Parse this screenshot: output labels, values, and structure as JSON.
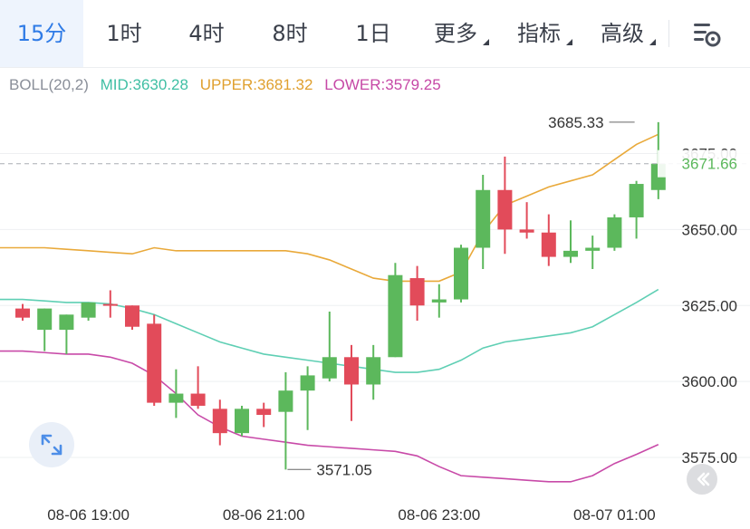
{
  "toolbar": {
    "tabs": [
      {
        "label": "15分",
        "active": true,
        "dropdown": false
      },
      {
        "label": "1时",
        "active": false,
        "dropdown": false
      },
      {
        "label": "4时",
        "active": false,
        "dropdown": false
      },
      {
        "label": "8时",
        "active": false,
        "dropdown": false
      },
      {
        "label": "1日",
        "active": false,
        "dropdown": false
      },
      {
        "label": "更多",
        "active": false,
        "dropdown": true
      },
      {
        "label": "指标",
        "active": false,
        "dropdown": true
      },
      {
        "label": "高级",
        "active": false,
        "dropdown": true
      }
    ],
    "settings_icon": "chart-settings-icon"
  },
  "indicator": {
    "name": "BOLL(20,2)",
    "mid_label": "MID:3630.28",
    "upper_label": "UPPER:3681.32",
    "lower_label": "LOWER:3579.25"
  },
  "colors": {
    "up": "#5cb85c",
    "down": "#e24b5a",
    "mid": "#5fcfb4",
    "upper": "#e9a93a",
    "lower": "#c84aa8",
    "axis_text": "#333333",
    "grid": "#eef0f2",
    "accent": "#2f7be6"
  },
  "chart_data": {
    "type": "candlestick",
    "y_range": [
      3565,
      3695
    ],
    "y_ticks": [
      3575,
      3600,
      3625,
      3650,
      3675
    ],
    "y_tick_labels": [
      "3575.00",
      "3600.00",
      "3625.00",
      "3650.00",
      "3675.00"
    ],
    "x_tick_labels": [
      "08-06 19:00",
      "08-06 21:00",
      "08-06 23:00",
      "08-07 01:00"
    ],
    "x_tick_candle_index": [
      3,
      11,
      19,
      27
    ],
    "current_price_label": "3671.66",
    "current_price": 3671.66,
    "annotations": [
      {
        "label": "3685.33",
        "value": 3685.33,
        "candle_index": 28
      },
      {
        "label": "3571.05",
        "value": 3571.05,
        "candle_index": 12
      }
    ],
    "candles": [
      {
        "o": 3624,
        "h": 3625.5,
        "l": 3620,
        "c": 3621
      },
      {
        "o": 3617,
        "h": 3624,
        "l": 3610,
        "c": 3624
      },
      {
        "o": 3617,
        "h": 3622,
        "l": 3609,
        "c": 3622
      },
      {
        "o": 3621,
        "h": 3626,
        "l": 3620,
        "c": 3626
      },
      {
        "o": 3625.5,
        "h": 3630,
        "l": 3621,
        "c": 3625
      },
      {
        "o": 3625,
        "h": 3625,
        "l": 3617,
        "c": 3618
      },
      {
        "o": 3619,
        "h": 3622,
        "l": 3592,
        "c": 3593
      },
      {
        "o": 3593,
        "h": 3604,
        "l": 3588,
        "c": 3596
      },
      {
        "o": 3596,
        "h": 3605,
        "l": 3591,
        "c": 3592
      },
      {
        "o": 3591,
        "h": 3594,
        "l": 3579,
        "c": 3583
      },
      {
        "o": 3583,
        "h": 3592,
        "l": 3582,
        "c": 3591
      },
      {
        "o": 3591,
        "h": 3593,
        "l": 3585,
        "c": 3589
      },
      {
        "o": 3590,
        "h": 3603,
        "l": 3571,
        "c": 3597
      },
      {
        "o": 3597,
        "h": 3605,
        "l": 3584,
        "c": 3602
      },
      {
        "o": 3601,
        "h": 3623,
        "l": 3600,
        "c": 3608
      },
      {
        "o": 3608,
        "h": 3612,
        "l": 3587,
        "c": 3599
      },
      {
        "o": 3599,
        "h": 3612,
        "l": 3594,
        "c": 3608
      },
      {
        "o": 3608,
        "h": 3639,
        "l": 3608,
        "c": 3635
      },
      {
        "o": 3634,
        "h": 3638,
        "l": 3620,
        "c": 3625
      },
      {
        "o": 3626,
        "h": 3632,
        "l": 3621,
        "c": 3627
      },
      {
        "o": 3627,
        "h": 3645,
        "l": 3626,
        "c": 3644
      },
      {
        "o": 3644,
        "h": 3668,
        "l": 3637,
        "c": 3663
      },
      {
        "o": 3663,
        "h": 3674,
        "l": 3642,
        "c": 3650
      },
      {
        "o": 3650,
        "h": 3659,
        "l": 3647,
        "c": 3649
      },
      {
        "o": 3649,
        "h": 3655,
        "l": 3638,
        "c": 3641
      },
      {
        "o": 3641,
        "h": 3653,
        "l": 3639,
        "c": 3643
      },
      {
        "o": 3643,
        "h": 3648,
        "l": 3637,
        "c": 3644
      },
      {
        "o": 3644,
        "h": 3655,
        "l": 3643,
        "c": 3654
      },
      {
        "o": 3654,
        "h": 3666,
        "l": 3647,
        "c": 3665
      },
      {
        "o": 3663,
        "h": 3685.33,
        "l": 3660,
        "c": 3671.66
      }
    ],
    "bands": {
      "upper": [
        3644,
        3644,
        3643.5,
        3643,
        3642.5,
        3642,
        3644,
        3643,
        3643,
        3643,
        3643,
        3643,
        3643,
        3642,
        3640,
        3637,
        3634,
        3633,
        3633,
        3633,
        3636,
        3649,
        3658,
        3661,
        3664,
        3666,
        3668,
        3673,
        3678,
        3681.32
      ],
      "mid": [
        3627,
        3626.5,
        3626,
        3626,
        3625.5,
        3624,
        3622,
        3619,
        3616,
        3613,
        3611,
        3609,
        3608,
        3607,
        3606,
        3605,
        3604,
        3603,
        3603,
        3604,
        3607,
        3611,
        3613,
        3614,
        3615,
        3616,
        3618,
        3622,
        3626,
        3630.28
      ],
      "lower": [
        3610,
        3609.5,
        3609,
        3609,
        3608,
        3606,
        3602,
        3596,
        3589,
        3585,
        3582,
        3581,
        3580,
        3579,
        3578.5,
        3578,
        3577.5,
        3577,
        3575.5,
        3572,
        3569,
        3568.5,
        3568,
        3567.5,
        3567,
        3567,
        3569,
        3573,
        3576,
        3579.25
      ]
    }
  }
}
